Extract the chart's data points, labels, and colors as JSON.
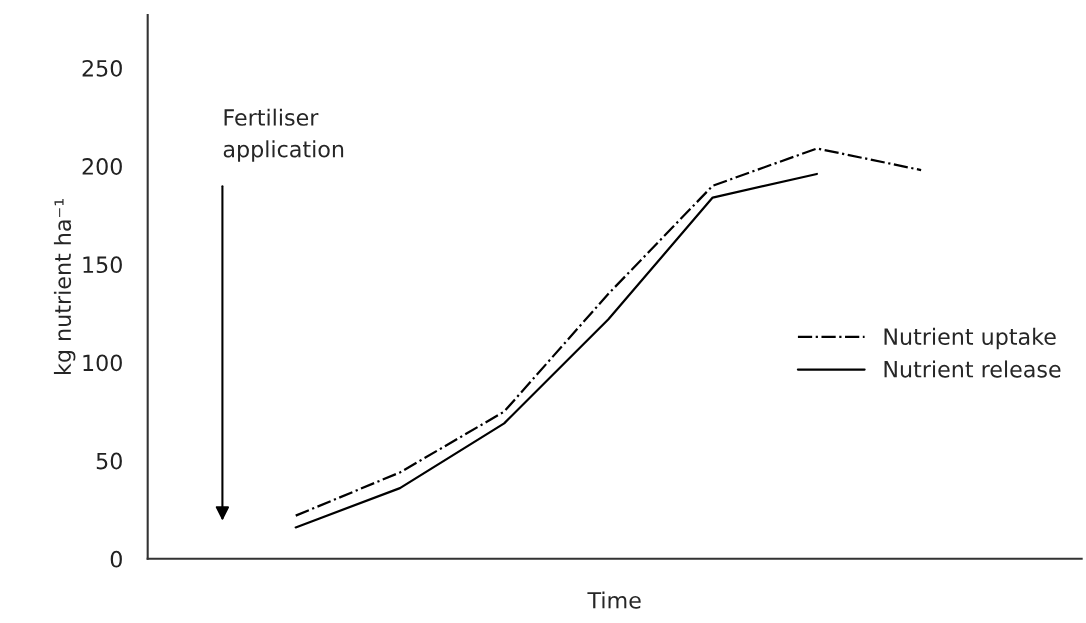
{
  "chart_data": {
    "type": "line",
    "xlabel": "Time",
    "ylabel": "kg nutrient ha⁻¹",
    "categories": [
      null,
      null,
      null,
      null,
      null,
      null,
      null
    ],
    "series": [
      {
        "name": "Nutrient uptake",
        "color": "#000000",
        "line_style": "dashdot",
        "values": [
          22,
          44,
          75,
          135,
          190,
          209,
          198
        ]
      },
      {
        "name": "Nutrient release",
        "color": "#000000",
        "line_style": "solid",
        "values": [
          16,
          36,
          69,
          122,
          184,
          196,
          null
        ]
      }
    ],
    "ylim": [
      0,
      277
    ],
    "yticks": [
      0,
      50,
      100,
      150,
      200,
      250
    ],
    "annotations": [
      "Fertiliser\napplication"
    ],
    "legend": "right",
    "grid": false,
    "marker": "none"
  }
}
